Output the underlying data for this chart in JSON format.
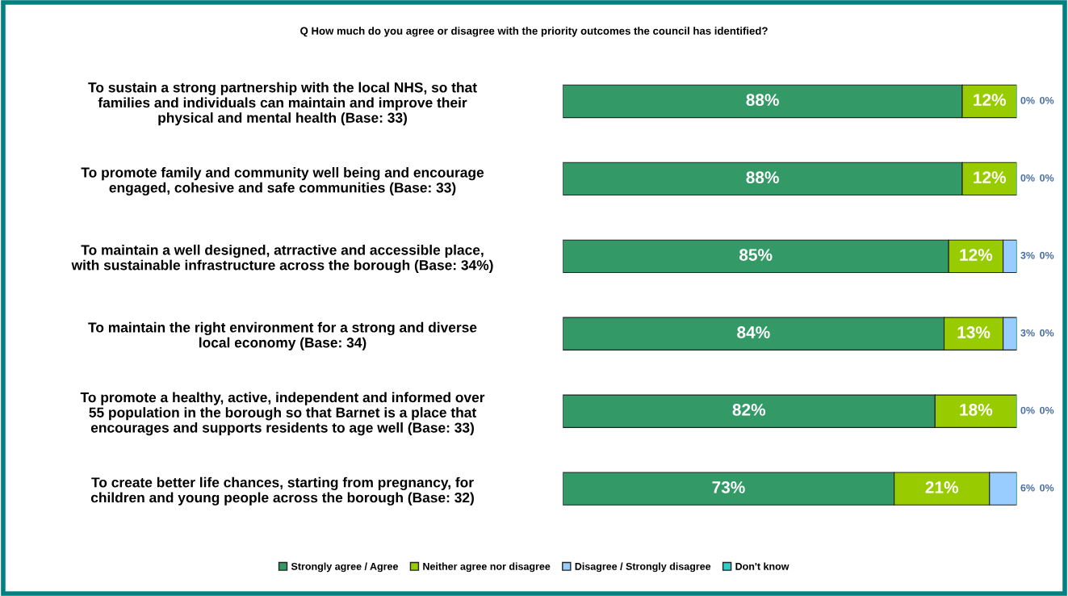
{
  "chart_data": {
    "type": "bar",
    "orientation": "horizontal",
    "stacked": true,
    "tick_labels": "y",
    "legend": "bottom",
    "grid": false,
    "title": "Q How much do you agree or disagree with the priority outcomes the council has identified?",
    "categories": [
      "To sustain a strong partnership with the local NHS, so that\nfamilies and individuals can maintain and improve their\nphysical and mental health (Base: 33)",
      "To promote family and community well being and encourage\nengaged, cohesive and safe communities (Base: 33)",
      "To maintain a well designed, atrractive and accessible place,\nwith sustainable infrastructure across the borough (Base: 34%)",
      "To maintain the right environment for a strong and diverse\nlocal economy (Base: 34)",
      "To promote a healthy, active, independent and informed over\n55 population in the borough so that Barnet is a place that\nencourages and supports residents to age well (Base: 33)",
      "To create better life chances, starting from pregnancy, for\nchildren and young people across the borough (Base: 32)"
    ],
    "series": [
      {
        "name": "Strongly agree / Agree",
        "color": "#339966",
        "values": [
          88,
          88,
          85,
          84,
          82,
          73
        ],
        "value_labels": [
          "88%",
          "88%",
          "85%",
          "84%",
          "82%",
          "73%"
        ]
      },
      {
        "name": "Neither agree nor disagree",
        "color": "#99cc00",
        "values": [
          12,
          12,
          12,
          13,
          18,
          21
        ],
        "value_labels": [
          "12%",
          "12%",
          "12%",
          "13%",
          "18%",
          "21%"
        ]
      },
      {
        "name": "Disagree / Strongly disagree",
        "color": "#99ccff",
        "values": [
          0,
          0,
          3,
          3,
          0,
          6
        ],
        "value_labels": [
          "0%",
          "0%",
          "3%",
          "3%",
          "0%",
          "6%"
        ]
      },
      {
        "name": "Don't know",
        "color": "#33cccc",
        "values": [
          0,
          0,
          0,
          0,
          0,
          0
        ],
        "value_labels": [
          "0%",
          "0%",
          "0%",
          "0%",
          "0%",
          "0%"
        ]
      }
    ]
  }
}
